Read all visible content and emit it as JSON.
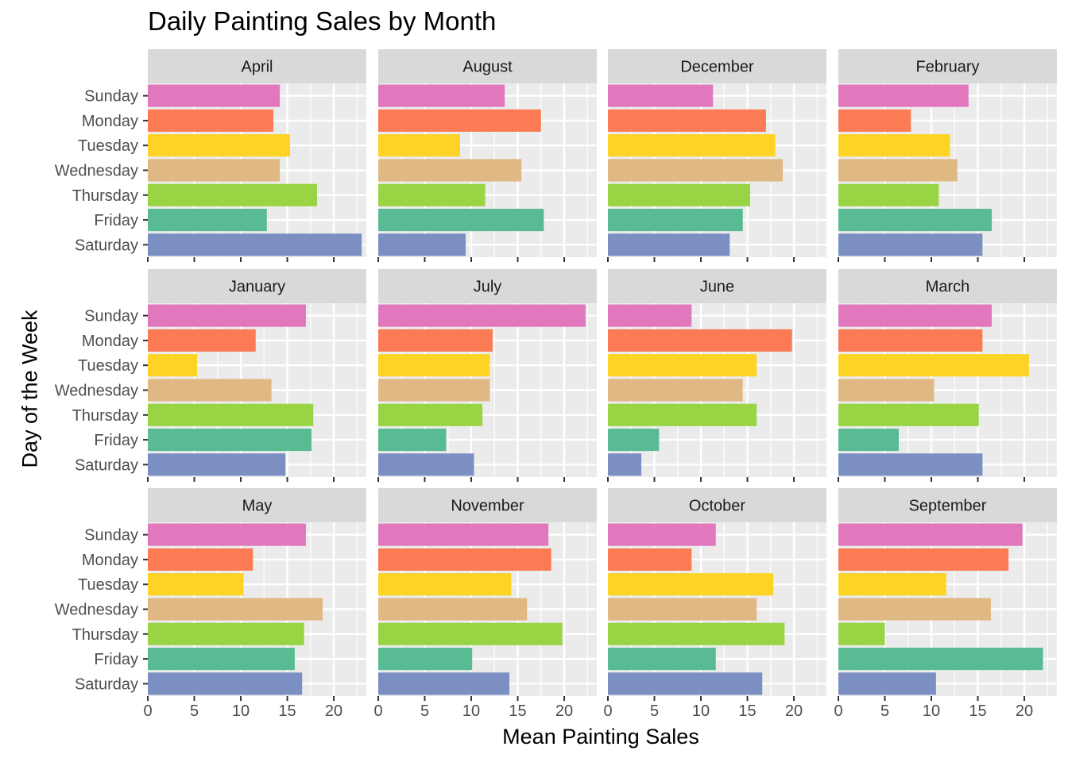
{
  "chart_data": {
    "type": "bar",
    "orientation": "horizontal",
    "title": "Daily Painting Sales by Month",
    "xlabel": "Mean Painting Sales",
    "ylabel": "Day of the Week",
    "xlim": [
      0,
      23.5
    ],
    "x_ticks": [
      0,
      5,
      10,
      15,
      20
    ],
    "grid": true,
    "facet_columns": 4,
    "categories": [
      "Sunday",
      "Monday",
      "Tuesday",
      "Wednesday",
      "Thursday",
      "Friday",
      "Saturday"
    ],
    "colors": {
      "Sunday": "#E178BE",
      "Monday": "#FC7B55",
      "Tuesday": "#FDD325",
      "Wednesday": "#DFB884",
      "Thursday": "#98D443",
      "Friday": "#58BB93",
      "Saturday": "#7C8FC2"
    },
    "panels": [
      {
        "month": "April",
        "values": [
          14.2,
          13.5,
          15.3,
          14.2,
          18.2,
          12.8,
          23.0
        ]
      },
      {
        "month": "August",
        "values": [
          13.6,
          17.5,
          8.8,
          15.4,
          11.5,
          17.8,
          9.4
        ]
      },
      {
        "month": "December",
        "values": [
          11.3,
          17.0,
          18.0,
          18.8,
          15.3,
          14.5,
          13.1
        ]
      },
      {
        "month": "February",
        "values": [
          14.0,
          7.8,
          12.0,
          12.8,
          10.8,
          16.5,
          15.5
        ]
      },
      {
        "month": "January",
        "values": [
          17.0,
          11.6,
          5.3,
          13.3,
          17.8,
          17.6,
          14.8
        ]
      },
      {
        "month": "July",
        "values": [
          22.3,
          12.3,
          12.0,
          12.0,
          11.2,
          7.3,
          10.3
        ]
      },
      {
        "month": "June",
        "values": [
          9.0,
          19.8,
          16.0,
          14.5,
          16.0,
          5.5,
          3.6
        ]
      },
      {
        "month": "March",
        "values": [
          16.5,
          15.5,
          20.5,
          10.3,
          15.1,
          6.5,
          15.5
        ]
      },
      {
        "month": "May",
        "values": [
          17.0,
          11.3,
          10.3,
          18.8,
          16.8,
          15.8,
          16.6
        ]
      },
      {
        "month": "November",
        "values": [
          18.3,
          18.6,
          14.3,
          16.0,
          19.8,
          10.1,
          14.1
        ]
      },
      {
        "month": "October",
        "values": [
          11.6,
          9.0,
          17.8,
          16.0,
          19.0,
          11.6,
          16.6
        ]
      },
      {
        "month": "September",
        "values": [
          19.8,
          18.3,
          11.6,
          16.4,
          5.0,
          22.0,
          10.5
        ]
      }
    ]
  }
}
